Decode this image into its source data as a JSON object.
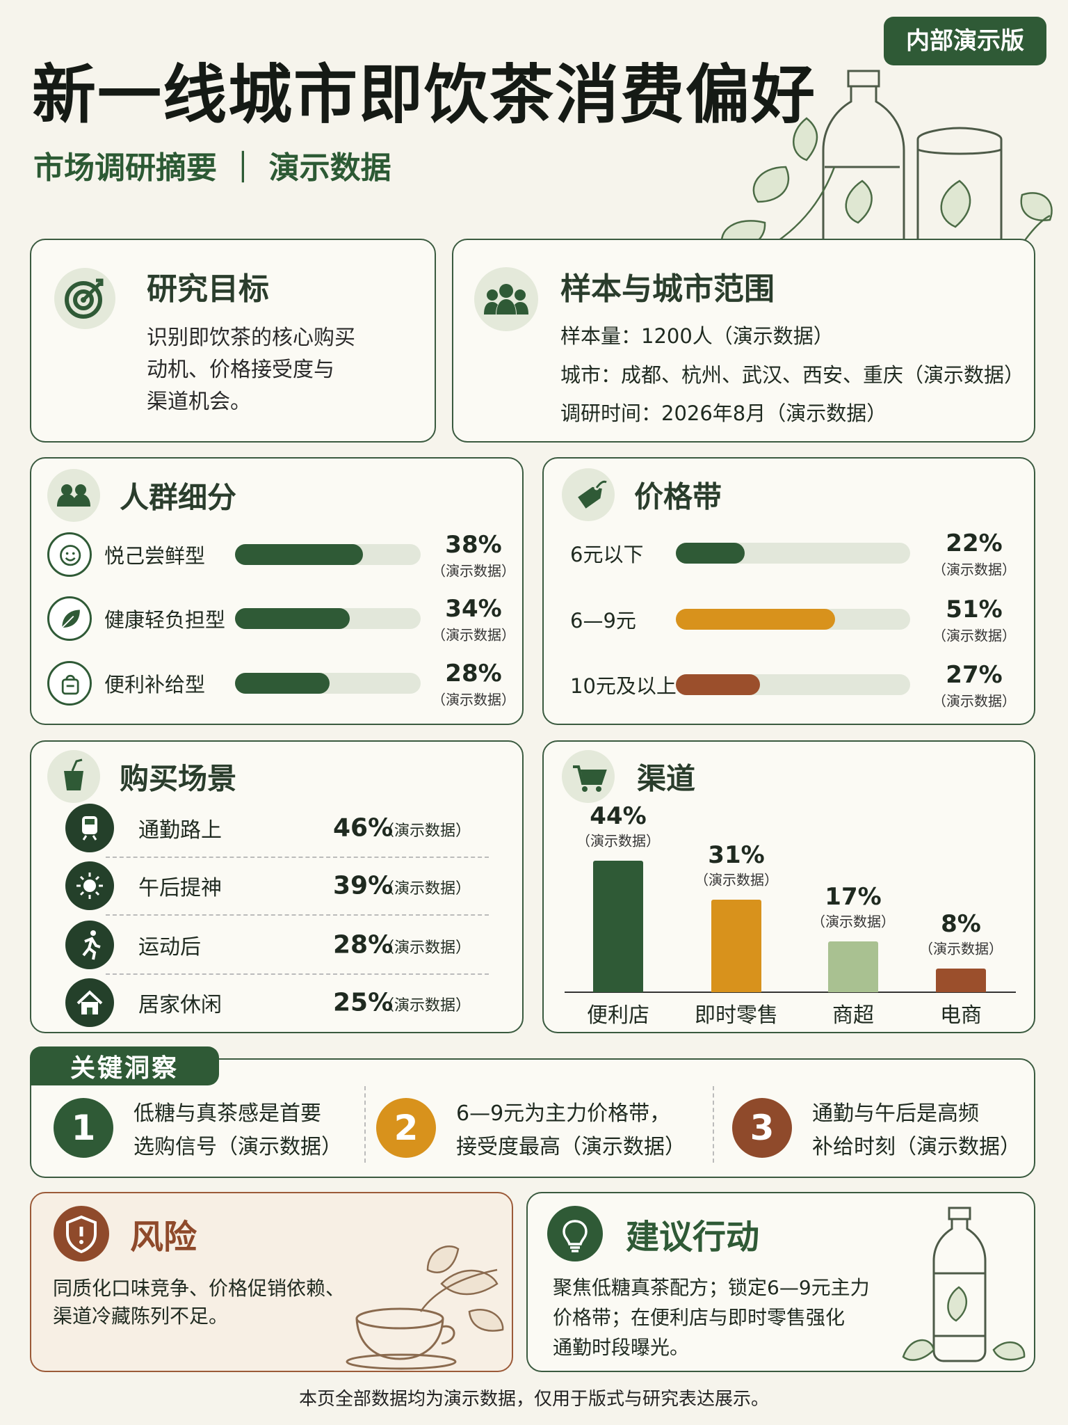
{
  "badge": "内部演示版",
  "header": {
    "title": "新一线城市即饮茶消费偏好",
    "subtitle": "市场调研摘要 ｜ 演示数据"
  },
  "objective": {
    "title": "研究目标",
    "lines": [
      "识别即饮茶的核心购买",
      "动机、价格接受度与",
      "渠道机会。"
    ]
  },
  "sample": {
    "title": "样本与城市范围",
    "lines": [
      "样本量：1200人（演示数据）",
      "城市：成都、杭州、武汉、西安、重庆（演示数据）",
      "调研时间：2026年8月（演示数据）"
    ]
  },
  "segments": {
    "title": "人群细分",
    "note": "（演示数据）",
    "categories": [
      "悦己尝鲜型",
      "健康轻负担型",
      "便利补给型"
    ],
    "values": [
      38,
      34,
      28
    ],
    "value_labels": [
      "38%",
      "34%",
      "28%"
    ],
    "color": "#2f5a36",
    "xlim": [
      0,
      55
    ]
  },
  "price": {
    "title": "价格带",
    "note": "（演示数据）",
    "categories": [
      "6元以下",
      "6—9元",
      "10元及以上"
    ],
    "values": [
      22,
      51,
      27
    ],
    "value_labels": [
      "22%",
      "51%",
      "27%"
    ],
    "colors": [
      "#2f5a36",
      "#d8921c",
      "#9b4f2c"
    ],
    "xlim": [
      0,
      75
    ]
  },
  "scenes": {
    "title": "购买场景",
    "note": "（演示数据）",
    "items": [
      {
        "label": "通勤路上",
        "value": "46%"
      },
      {
        "label": "午后提神",
        "value": "39%"
      },
      {
        "label": "运动后",
        "value": "28%"
      },
      {
        "label": "居家休闲",
        "value": "25%"
      }
    ]
  },
  "channels": {
    "title": "渠道",
    "note": "（演示数据）",
    "categories": [
      "便利店",
      "即时零售",
      "商超",
      "电商"
    ],
    "values": [
      44,
      31,
      17,
      8
    ],
    "value_labels": [
      "44%",
      "31%",
      "17%",
      "8%"
    ],
    "colors": [
      "#2f5a36",
      "#d8921c",
      "#a9c191",
      "#9b4f2c"
    ],
    "ylim": [
      0,
      50
    ]
  },
  "insights": {
    "title": "关键洞察",
    "items": [
      {
        "number": "1",
        "lines": [
          "低糖与真茶感是首要",
          "选购信号（演示数据）"
        ],
        "color": "#2f5a36"
      },
      {
        "number": "2",
        "lines": [
          "6—9元为主力价格带，",
          "接受度最高（演示数据）"
        ],
        "color": "#d8921c"
      },
      {
        "number": "3",
        "lines": [
          "通勤与午后是高频",
          "补给时刻（演示数据）"
        ],
        "color": "#8f4a2b"
      }
    ]
  },
  "risk": {
    "title": "风险",
    "lines": [
      "同质化口味竞争、价格促销依赖、",
      "渠道冷藏陈列不足。"
    ]
  },
  "actions": {
    "title": "建议行动",
    "lines": [
      "聚焦低糖真茶配方；锁定6—9元主力",
      "价格带；在便利店与即时零售强化",
      "通勤时段曝光。"
    ]
  },
  "footer": "本页全部数据均为演示数据，仅用于版式与研究表达展示。"
}
